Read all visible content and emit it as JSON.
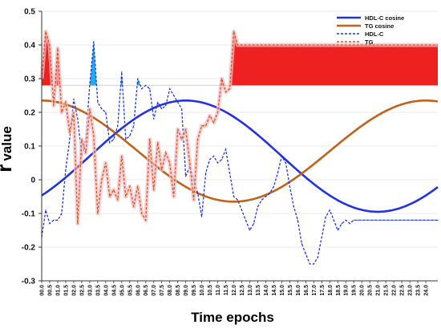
{
  "chart_data": {
    "type": "line",
    "xlabel": "Time epochs",
    "ylabel": "r value",
    "ylim": [
      -0.3,
      0.5
    ],
    "yticks": [
      "-0.3",
      "-0.2",
      "-0.1",
      "0",
      "0.1",
      "0.2",
      "0.3",
      "0.4",
      "0.5"
    ],
    "x_tick_labels": [
      "00.0",
      "00.5",
      "01.0",
      "01.5",
      "02.0",
      "02.5",
      "03.0",
      "03.5",
      "04.0",
      "04.5",
      "05.0",
      "05.5",
      "06.0",
      "06.5",
      "07.0",
      "07.5",
      "08.0",
      "08.5",
      "09.0",
      "09.5",
      "10.0",
      "10.5",
      "11.0",
      "11.5",
      "12.0",
      "12.5",
      "13.0",
      "13.5",
      "14.0",
      "14.5",
      "15.0",
      "15.5",
      "16.0",
      "16.5",
      "17.0",
      "17.5",
      "18.0",
      "18.5",
      "19.0",
      "19.5",
      "20.0",
      "20.5",
      "21.0",
      "21.5",
      "22.0",
      "22.5",
      "23.0",
      "23.5",
      "24.0"
    ],
    "x_data_range": [
      0,
      24.75
    ],
    "threshold_line": 0.28,
    "legend_position": "top-right",
    "series": [
      {
        "name": "HDL-C cosine",
        "style": "solid",
        "color": "#2233dd",
        "cosinor": {
          "mesor": 0.07,
          "amplitude": 0.165,
          "acrophase_h": 9.0,
          "period_h": 24
        }
      },
      {
        "name": "TG cosine",
        "style": "solid",
        "color": "#c0621a",
        "cosinor": {
          "mesor": 0.085,
          "amplitude": 0.15,
          "acrophase_h": 0.0,
          "period_h": 24
        }
      },
      {
        "name": "HDL-C",
        "style": "dashed",
        "color": "#2233dd",
        "x": [
          0,
          0.25,
          0.5,
          0.75,
          1.0,
          1.25,
          1.5,
          1.75,
          2.0,
          2.25,
          2.5,
          2.75,
          3.0,
          3.25,
          3.5,
          3.75,
          4.0,
          4.25,
          4.5,
          4.75,
          5.0,
          5.25,
          5.5,
          5.75,
          6.0,
          6.25,
          6.5,
          6.75,
          7.0,
          7.25,
          7.5,
          7.75,
          8.0,
          8.25,
          8.5,
          8.75,
          9.0,
          9.25,
          9.5,
          9.75,
          10.0,
          10.25,
          10.5,
          10.75,
          11.0,
          11.25,
          11.5,
          11.75,
          12.0,
          12.25,
          12.5,
          12.75,
          13.0,
          13.25,
          13.5,
          13.75,
          14.0,
          14.25,
          14.5,
          14.75,
          15.0,
          15.25,
          15.5,
          15.75,
          16.0,
          16.25,
          16.5,
          16.75,
          17.0,
          17.25,
          17.5,
          17.75,
          18.0,
          18.25,
          18.5,
          18.75,
          19.0,
          19.25,
          19.5,
          19.75,
          20.0,
          20.25,
          20.5,
          20.75,
          21.0,
          21.25,
          21.5,
          21.75,
          22.0,
          22.25,
          22.5,
          22.75,
          23.0,
          23.25,
          23.5,
          23.75,
          24.0,
          24.25,
          24.5,
          24.75
        ],
        "y": [
          -0.17,
          -0.09,
          -0.13,
          -0.12,
          -0.12,
          -0.1,
          0.03,
          0.12,
          0.24,
          0.18,
          0.07,
          0.12,
          0.28,
          0.41,
          0.23,
          0.21,
          0.2,
          0.11,
          0.12,
          0.16,
          0.32,
          0.12,
          0.13,
          0.16,
          0.3,
          0.27,
          0.28,
          0.27,
          0.18,
          0.23,
          0.21,
          0.22,
          0.27,
          0.25,
          0.23,
          0.21,
          0.01,
          0.04,
          0.0,
          -0.04,
          -0.11,
          0.02,
          0.06,
          0.07,
          0.05,
          0.06,
          0.09,
          0.02,
          -0.05,
          -0.06,
          -0.09,
          -0.12,
          -0.15,
          -0.13,
          -0.08,
          -0.06,
          -0.05,
          -0.04,
          -0.02,
          0.02,
          0.07,
          0.05,
          -0.02,
          -0.08,
          -0.12,
          -0.19,
          -0.22,
          -0.25,
          -0.25,
          -0.23,
          -0.17,
          -0.11,
          -0.09,
          -0.12,
          -0.15,
          -0.13,
          -0.12,
          -0.13,
          -0.12,
          -0.12,
          -0.12,
          -0.12,
          -0.12,
          -0.12,
          -0.12,
          -0.12,
          -0.12,
          -0.12,
          -0.12,
          -0.12,
          -0.12,
          -0.12,
          -0.12,
          -0.12,
          -0.12,
          -0.12,
          -0.12,
          -0.12,
          -0.12,
          -0.12
        ]
      },
      {
        "name": "TG",
        "style": "dashed",
        "color": "#c0621a",
        "x": [
          0,
          0.25,
          0.5,
          0.75,
          1.0,
          1.25,
          1.5,
          1.75,
          2.0,
          2.25,
          2.5,
          2.75,
          3.0,
          3.25,
          3.5,
          3.75,
          4.0,
          4.25,
          4.5,
          4.75,
          5.0,
          5.25,
          5.5,
          5.75,
          6.0,
          6.25,
          6.5,
          6.75,
          7.0,
          7.25,
          7.5,
          7.75,
          8.0,
          8.25,
          8.5,
          8.75,
          9.0,
          9.25,
          9.5,
          9.75,
          10.0,
          10.25,
          10.5,
          10.75,
          11.0,
          11.25,
          11.5,
          11.75,
          12.0,
          12.25,
          12.5,
          12.75,
          13.0,
          13.25,
          13.5,
          13.75,
          14.0,
          14.25,
          14.5,
          14.75,
          15.0,
          15.25,
          15.5,
          15.75,
          16.0,
          16.25,
          16.5,
          16.75,
          17.0,
          17.25,
          17.5,
          17.75,
          18.0,
          18.25,
          18.5,
          18.75,
          19.0,
          19.25,
          19.5,
          19.75,
          20.0,
          20.25,
          20.5,
          20.75,
          21.0,
          21.25,
          21.5,
          21.75,
          22.0,
          22.25,
          22.5,
          22.75,
          23.0,
          23.25,
          23.5,
          23.75,
          24.0,
          24.25,
          24.5,
          24.75
        ],
        "y": [
          0.3,
          0.44,
          0.4,
          0.22,
          0.39,
          0.2,
          0.23,
          0.14,
          0.2,
          -0.13,
          0.12,
          0.08,
          0.21,
          0.13,
          -0.1,
          0.0,
          0.05,
          -0.05,
          -0.03,
          -0.06,
          0.07,
          -0.05,
          -0.02,
          -0.08,
          -0.02,
          -0.1,
          -0.12,
          0.12,
          -0.03,
          0.11,
          0.03,
          0.08,
          0.05,
          -0.05,
          0.15,
          0.12,
          0.15,
          0.05,
          -0.06,
          0.12,
          0.16,
          0.16,
          0.19,
          0.17,
          0.2,
          0.3,
          0.26,
          0.27,
          0.44,
          0.4,
          0.4,
          0.4,
          0.4,
          0.4,
          0.4,
          0.4,
          0.4,
          0.4,
          0.4,
          0.4,
          0.4,
          0.4,
          0.4,
          0.4,
          0.4,
          0.4,
          0.4,
          0.4,
          0.4,
          0.4,
          0.4,
          0.4,
          0.4,
          0.4,
          0.4,
          0.4,
          0.4,
          0.4,
          0.4,
          0.4,
          0.4,
          0.4,
          0.4,
          0.4,
          0.4,
          0.4,
          0.4,
          0.4,
          0.4,
          0.4,
          0.4,
          0.4,
          0.4,
          0.4,
          0.4,
          0.4,
          0.4,
          0.4,
          0.4,
          0.4
        ]
      }
    ]
  }
}
